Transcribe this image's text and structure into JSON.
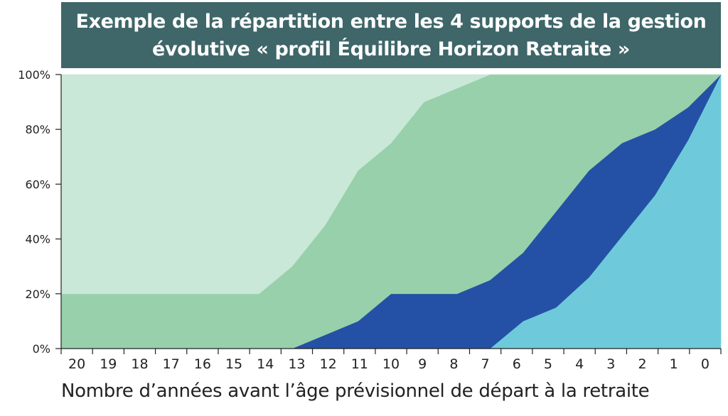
{
  "chart_data": {
    "type": "area",
    "stacked": true,
    "title": [
      "Exemple de la répartition entre les 4 supports de la gestion",
      "évolutive « profil Équilibre Horizon Retraite »"
    ],
    "xlabel": "Nombre d’années avant l’âge prévisionnel de départ à la retraite",
    "ylabel": "",
    "x": [
      20,
      19,
      18,
      17,
      16,
      15,
      14,
      13,
      12,
      11,
      10,
      9,
      8,
      7,
      6,
      5,
      4,
      3,
      2,
      1,
      0
    ],
    "x_reversed": true,
    "ylim": [
      0,
      100
    ],
    "y_ticks": [
      "0%",
      "20%",
      "40%",
      "60%",
      "80%",
      "100%"
    ],
    "series": [
      {
        "color": "#6ecadb",
        "values": [
          0,
          0,
          0,
          0,
          0,
          0,
          0,
          0,
          0,
          0,
          0,
          0,
          0,
          0,
          10,
          15,
          26,
          41,
          56,
          76,
          100
        ]
      },
      {
        "color": "#2451a5",
        "values": [
          0,
          0,
          0,
          0,
          0,
          0,
          0,
          0,
          5,
          10,
          20,
          20,
          20,
          25,
          25,
          35,
          39,
          34,
          24,
          12,
          0
        ]
      },
      {
        "color": "#97d0aa",
        "values": [
          20,
          20,
          20,
          20,
          20,
          20,
          20,
          30,
          40,
          55,
          55,
          70,
          75,
          75,
          65,
          50,
          35,
          25,
          20,
          12,
          0
        ]
      },
      {
        "color": "#c9e8d7",
        "values": [
          80,
          80,
          80,
          80,
          80,
          80,
          80,
          70,
          55,
          35,
          25,
          10,
          5,
          0,
          0,
          0,
          0,
          0,
          0,
          0,
          0
        ]
      }
    ],
    "grid": false,
    "legend": "none"
  }
}
